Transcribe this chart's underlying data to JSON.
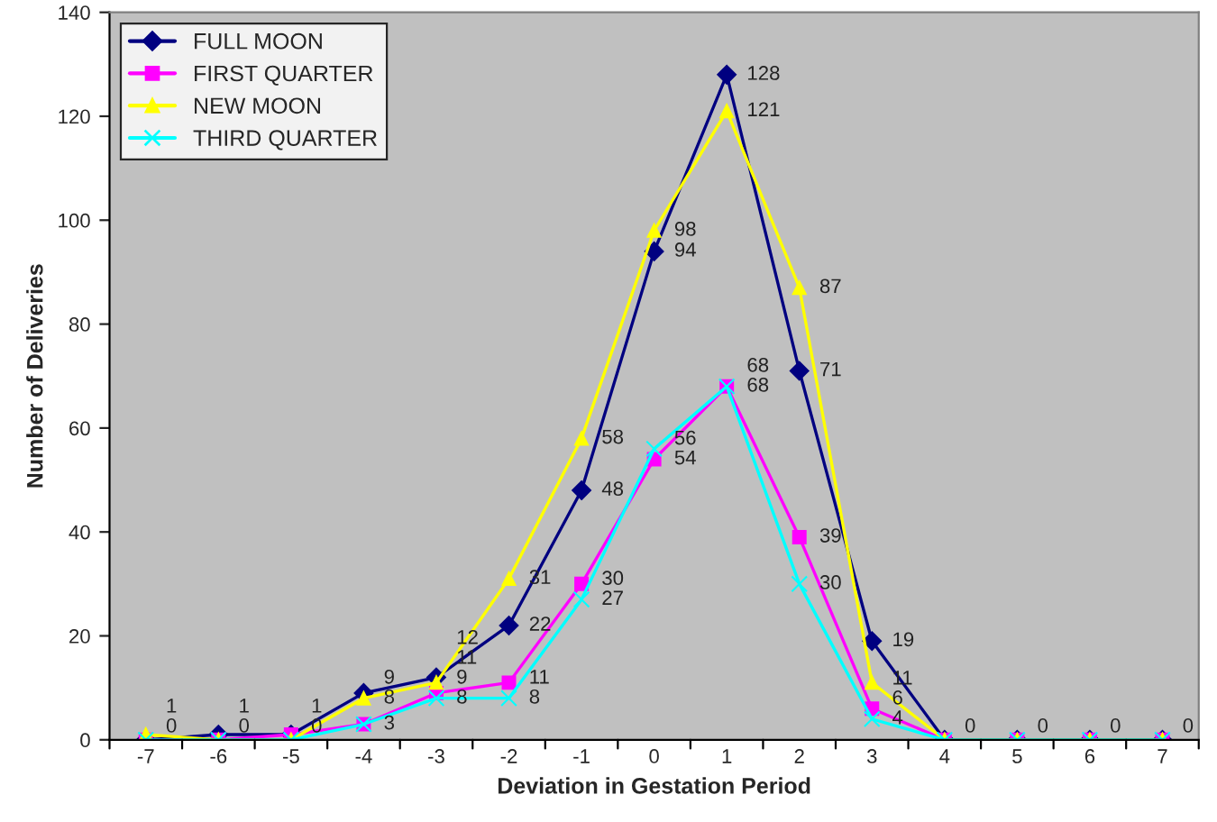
{
  "chart_data": {
    "type": "line",
    "xlabel": "Deviation in Gestation Period",
    "ylabel": "Number of Deliveries",
    "categories": [
      "-7",
      "-6",
      "-5",
      "-4",
      "-3",
      "-2",
      "-1",
      "0",
      "1",
      "2",
      "3",
      "4",
      "5",
      "6",
      "7"
    ],
    "series": [
      {
        "name": "FULL MOON",
        "color": "#000080",
        "marker": "diamond",
        "values": [
          0,
          1,
          1,
          9,
          12,
          22,
          48,
          94,
          128,
          71,
          19,
          0,
          0,
          0,
          0
        ],
        "value_labels": [
          "0",
          "1",
          "1",
          "9",
          "12",
          "22",
          "48",
          "94",
          "128",
          "71",
          "19",
          "0",
          "0",
          "0",
          "0"
        ]
      },
      {
        "name": "FIRST QUARTER",
        "color": "#ff00ff",
        "marker": "square",
        "values": [
          0,
          0,
          1,
          3,
          9,
          11,
          30,
          54,
          68,
          39,
          6,
          0,
          0,
          0,
          0
        ],
        "value_labels": [
          null,
          "0",
          null,
          "3",
          "9",
          "11",
          "30",
          "54",
          "68",
          "39",
          "6",
          null,
          null,
          null,
          null
        ]
      },
      {
        "name": "NEW MOON",
        "color": "#ffff00",
        "marker": "triangle",
        "values": [
          1,
          0,
          0,
          8,
          11,
          31,
          58,
          98,
          121,
          87,
          11,
          0,
          0,
          0,
          0
        ],
        "value_labels": [
          "1",
          null,
          "0",
          "8",
          "11",
          "31",
          "58",
          "98",
          "121",
          "87",
          "11",
          null,
          null,
          null,
          null
        ]
      },
      {
        "name": "THIRD QUARTER",
        "color": "#00ffff",
        "marker": "cross",
        "values": [
          0,
          0,
          0,
          3,
          8,
          8,
          27,
          56,
          68,
          30,
          4,
          0,
          0,
          0,
          0
        ],
        "value_labels": [
          null,
          null,
          null,
          null,
          "8",
          "8",
          "27",
          "56",
          "68",
          "30",
          "4",
          null,
          null,
          null,
          null
        ]
      }
    ],
    "ylim": [
      0,
      140
    ],
    "yticks": [
      0,
      20,
      40,
      60,
      80,
      100,
      120,
      140
    ],
    "grid": false,
    "legend": "top left"
  }
}
